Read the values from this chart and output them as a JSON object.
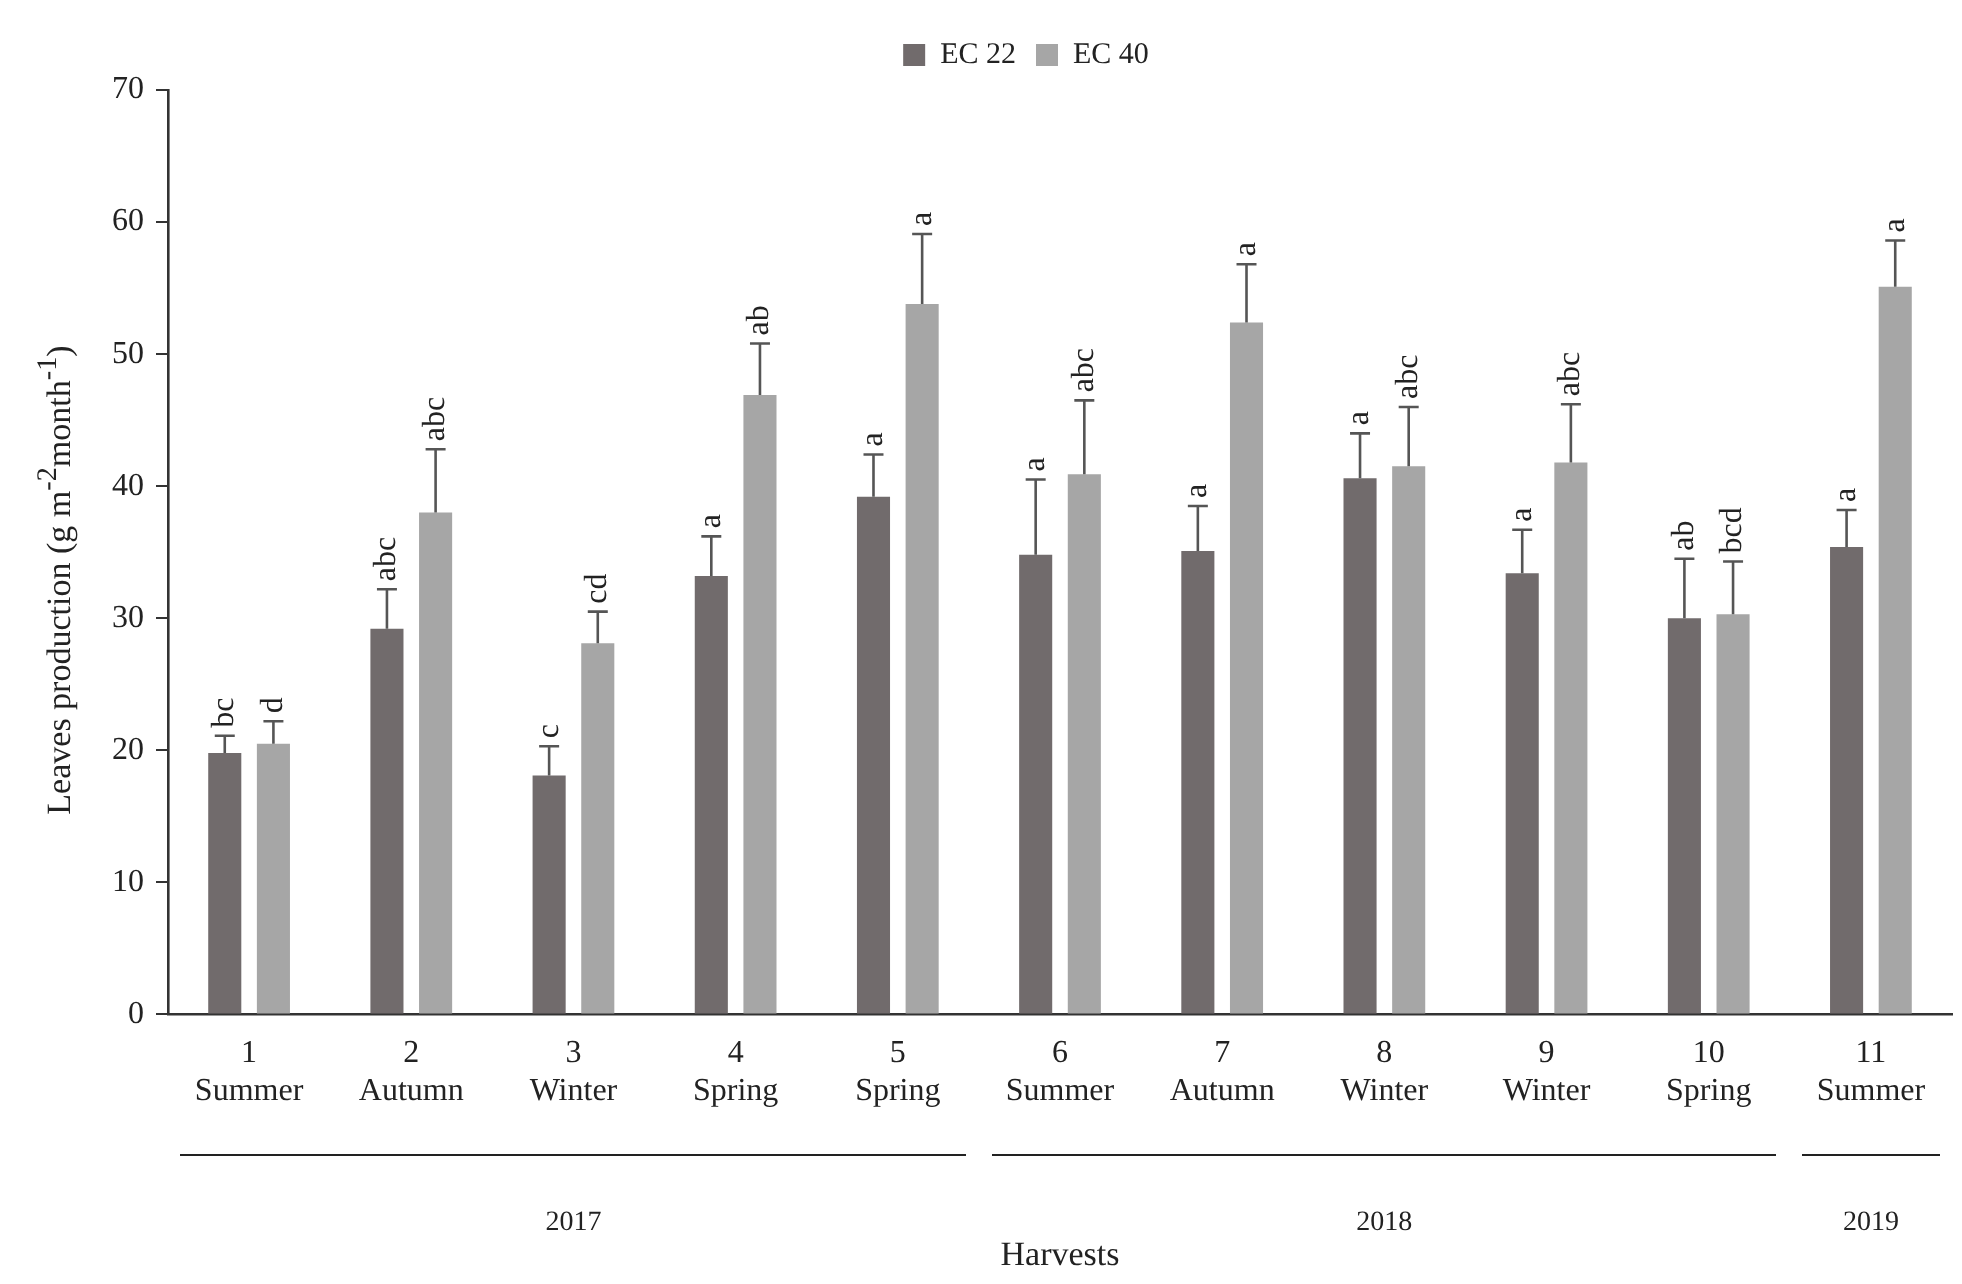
{
  "chart_data": {
    "type": "bar",
    "xlabel": "Harvests",
    "ylabel": "Leaves production (g m$^{-2}$month$^{-1}$)",
    "categories": [
      "1\nSummer",
      "2\nAutumn",
      "3\nWinter",
      "4\nSpring",
      "5\nSpring",
      "6\nSummer",
      "7\nAutumn",
      "8\nWinter",
      "9\nWinter",
      "10\nSpring",
      "11\nSummer"
    ],
    "series": [
      {
        "name": "EC 22",
        "color": "#716b6c",
        "values": [
          19.8,
          29.2,
          18.1,
          33.2,
          39.2,
          34.8,
          35.1,
          40.6,
          33.4,
          30.0,
          35.4
        ],
        "errors": [
          [
            19.8,
            21.1
          ],
          [
            29.2,
            32.2
          ],
          [
            18.1,
            20.3
          ],
          [
            33.2,
            36.2
          ],
          [
            39.2,
            42.4
          ],
          [
            34.8,
            40.5
          ],
          [
            35.1,
            38.5
          ],
          [
            40.6,
            44.0
          ],
          [
            33.4,
            36.7
          ],
          [
            30.0,
            34.5
          ],
          [
            35.4,
            38.2
          ]
        ],
        "value_labels": [
          "bc",
          "abc",
          "c",
          "a",
          "a",
          "a",
          "a",
          "a",
          "a",
          "ab",
          "a"
        ]
      },
      {
        "name": "EC 40",
        "color": "#a6a6a6",
        "values": [
          20.5,
          38.0,
          28.1,
          46.9,
          53.8,
          40.9,
          52.4,
          41.5,
          41.8,
          30.3,
          55.1
        ],
        "errors": [
          [
            20.5,
            22.2
          ],
          [
            38.0,
            42.8
          ],
          [
            28.1,
            30.5
          ],
          [
            46.9,
            50.8
          ],
          [
            53.8,
            59.1
          ],
          [
            40.9,
            46.5
          ],
          [
            52.4,
            56.8
          ],
          [
            41.5,
            46.0
          ],
          [
            41.8,
            46.2
          ],
          [
            30.3,
            34.3
          ],
          [
            55.1,
            58.6
          ]
        ],
        "value_labels": [
          "d",
          "abc",
          "cd",
          "ab",
          "a",
          "abc",
          "a",
          "abc",
          "abc",
          "bcd",
          "a"
        ]
      }
    ],
    "ylim": [
      0,
      70
    ],
    "yticks": [
      0,
      10,
      20,
      30,
      40,
      50,
      60,
      70
    ],
    "grid": false,
    "legend": "top",
    "annotations": [
      "2017",
      "2018",
      "2019"
    ]
  }
}
